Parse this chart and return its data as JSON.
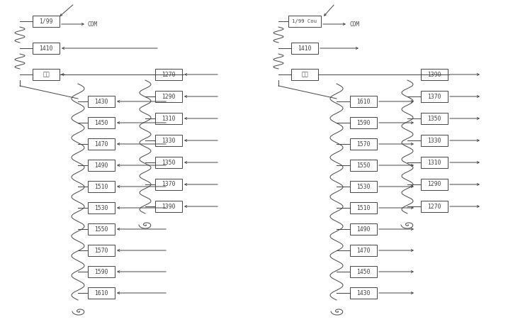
{
  "bg": "#ffffff",
  "lc": "#444444",
  "left": {
    "coupler": "1/99",
    "ch1410": "1410",
    "chip": "蒈片",
    "left_chs": [
      "1430",
      "1450",
      "1470",
      "1490",
      "1510",
      "1530",
      "1550",
      "1570",
      "1590",
      "1610"
    ],
    "right_chs": [
      "1270",
      "1290",
      "1310",
      "1330",
      "1350",
      "1370",
      "1390"
    ]
  },
  "right": {
    "coupler": "1/99 Cou",
    "ch1410": "1410",
    "chip": "蒈片",
    "left_chs": [
      "1610",
      "1590",
      "1570",
      "1550",
      "1530",
      "1510",
      "1490",
      "1470",
      "1450",
      "1430"
    ],
    "right_chs": [
      "1390",
      "1370",
      "1350",
      "1330",
      "1310",
      "1290",
      "1270"
    ]
  },
  "figsize": [
    7.17,
    4.61
  ],
  "dpi": 100
}
